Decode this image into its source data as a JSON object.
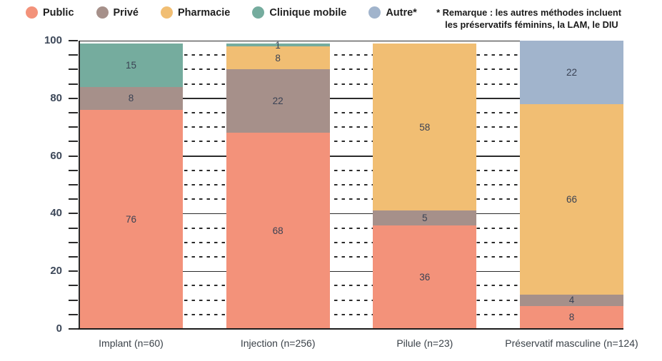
{
  "note": {
    "line1": "* Remarque : les autres méthodes incluent",
    "line2": "les préservatifs féminins, la LAM, le DIU"
  },
  "legend": {
    "items": [
      {
        "label": "Public",
        "color": "#F3927A"
      },
      {
        "label": "Privé",
        "color": "#A6908A"
      },
      {
        "label": "Pharmacie",
        "color": "#F1BE73"
      },
      {
        "label": "Clinique mobile",
        "color": "#75AC9E"
      },
      {
        "label": "Autre*",
        "color": "#A1B4CC"
      }
    ]
  },
  "chart_data": {
    "type": "bar",
    "stacked": true,
    "unit": "percent",
    "categories": [
      "Implant (n=60)",
      "Injection (n=256)",
      "Pilule (n=23)",
      "Préservatif masculine (n=124)"
    ],
    "series": [
      {
        "name": "Public",
        "color": "#F3927A",
        "values": [
          76,
          68,
          36,
          8
        ]
      },
      {
        "name": "Privé",
        "color": "#A6908A",
        "values": [
          8,
          22,
          5,
          4
        ]
      },
      {
        "name": "Pharmacie",
        "color": "#F1BE73",
        "values": [
          0,
          8,
          58,
          66
        ]
      },
      {
        "name": "Clinique mobile",
        "color": "#75AC9E",
        "values": [
          15,
          1,
          0,
          0
        ]
      },
      {
        "name": "Autre*",
        "color": "#A1B4CC",
        "values": [
          0,
          0,
          0,
          22
        ]
      }
    ],
    "ylim": [
      0,
      100
    ],
    "y_major_step": 20,
    "y_minor_step": 5,
    "y_tick_labels": [
      "0",
      "20",
      "40",
      "60",
      "80",
      "100"
    ],
    "grid": {
      "major": "solid",
      "minor": "dashed"
    },
    "legend_position": "top-left",
    "colors": {
      "grid": "#2B2B2B",
      "axis_label_text": "#3D4859",
      "value_label_text": "#3A4254",
      "category_label_text": "#3A4148",
      "legend_text": "#1F1F1F",
      "note_text": "#1A1A1A"
    }
  }
}
